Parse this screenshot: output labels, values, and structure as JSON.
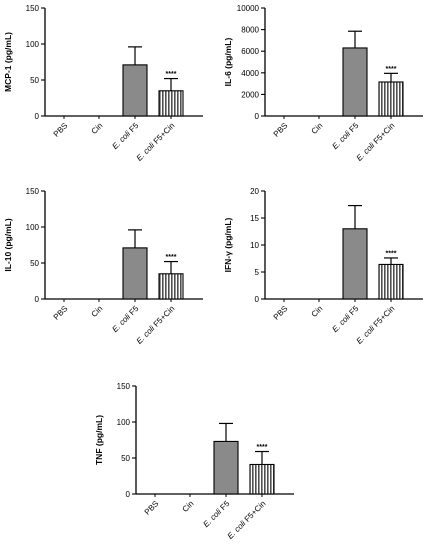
{
  "chart_data": [
    {
      "type": "bar",
      "ylabel": "MCP-1 (pg/mL)",
      "categories": [
        "PBS",
        "Cin",
        "E. coli F5",
        "E. coli F5+Cin"
      ],
      "values": [
        0,
        0,
        71,
        35
      ],
      "errors": [
        0,
        0,
        25,
        17
      ],
      "significance": [
        "",
        "",
        "",
        "****"
      ],
      "ylim": [
        0,
        150
      ],
      "yticks": [
        "0",
        "50",
        "100",
        "150"
      ]
    },
    {
      "type": "bar",
      "ylabel": "IL-6 (pg/mL)",
      "categories": [
        "PBS",
        "Cin",
        "E. coli F5",
        "E. coli F5+Cin"
      ],
      "values": [
        0,
        0,
        6300,
        3150
      ],
      "errors": [
        0,
        0,
        1550,
        800
      ],
      "significance": [
        "",
        "",
        "",
        "****"
      ],
      "ylim": [
        0,
        10000
      ],
      "yticks": [
        "0",
        "2000",
        "4000",
        "6000",
        "8000",
        "10000"
      ]
    },
    {
      "type": "bar",
      "ylabel": "IL-10 (pg/mL)",
      "categories": [
        "PBS",
        "Cin",
        "E. coli F5",
        "E. coli F5+Cin"
      ],
      "values": [
        0,
        0,
        71,
        35
      ],
      "errors": [
        0,
        0,
        25,
        17
      ],
      "significance": [
        "",
        "",
        "",
        "****"
      ],
      "ylim": [
        0,
        150
      ],
      "yticks": [
        "0",
        "50",
        "100",
        "150"
      ]
    },
    {
      "type": "bar",
      "ylabel": "IFN-γ (pg/mL)",
      "categories": [
        "PBS",
        "Cin",
        "E. coli F5",
        "E. coli F5+Cin"
      ],
      "values": [
        0,
        0,
        13,
        6.4
      ],
      "errors": [
        0,
        0,
        4.3,
        1.2
      ],
      "significance": [
        "",
        "",
        "",
        "****"
      ],
      "ylim": [
        0,
        20
      ],
      "yticks": [
        "0",
        "5",
        "10",
        "15",
        "20"
      ]
    },
    {
      "type": "bar",
      "ylabel": "TNF (pg/mL)",
      "categories": [
        "PBS",
        "Cin",
        "E. coli F5",
        "E. coli F5+Cin"
      ],
      "values": [
        0,
        0,
        73,
        41
      ],
      "errors": [
        0,
        0,
        25,
        18
      ],
      "significance": [
        "",
        "",
        "",
        "****"
      ],
      "ylim": [
        0,
        150
      ],
      "yticks": [
        "0",
        "50",
        "100",
        "150"
      ]
    }
  ]
}
